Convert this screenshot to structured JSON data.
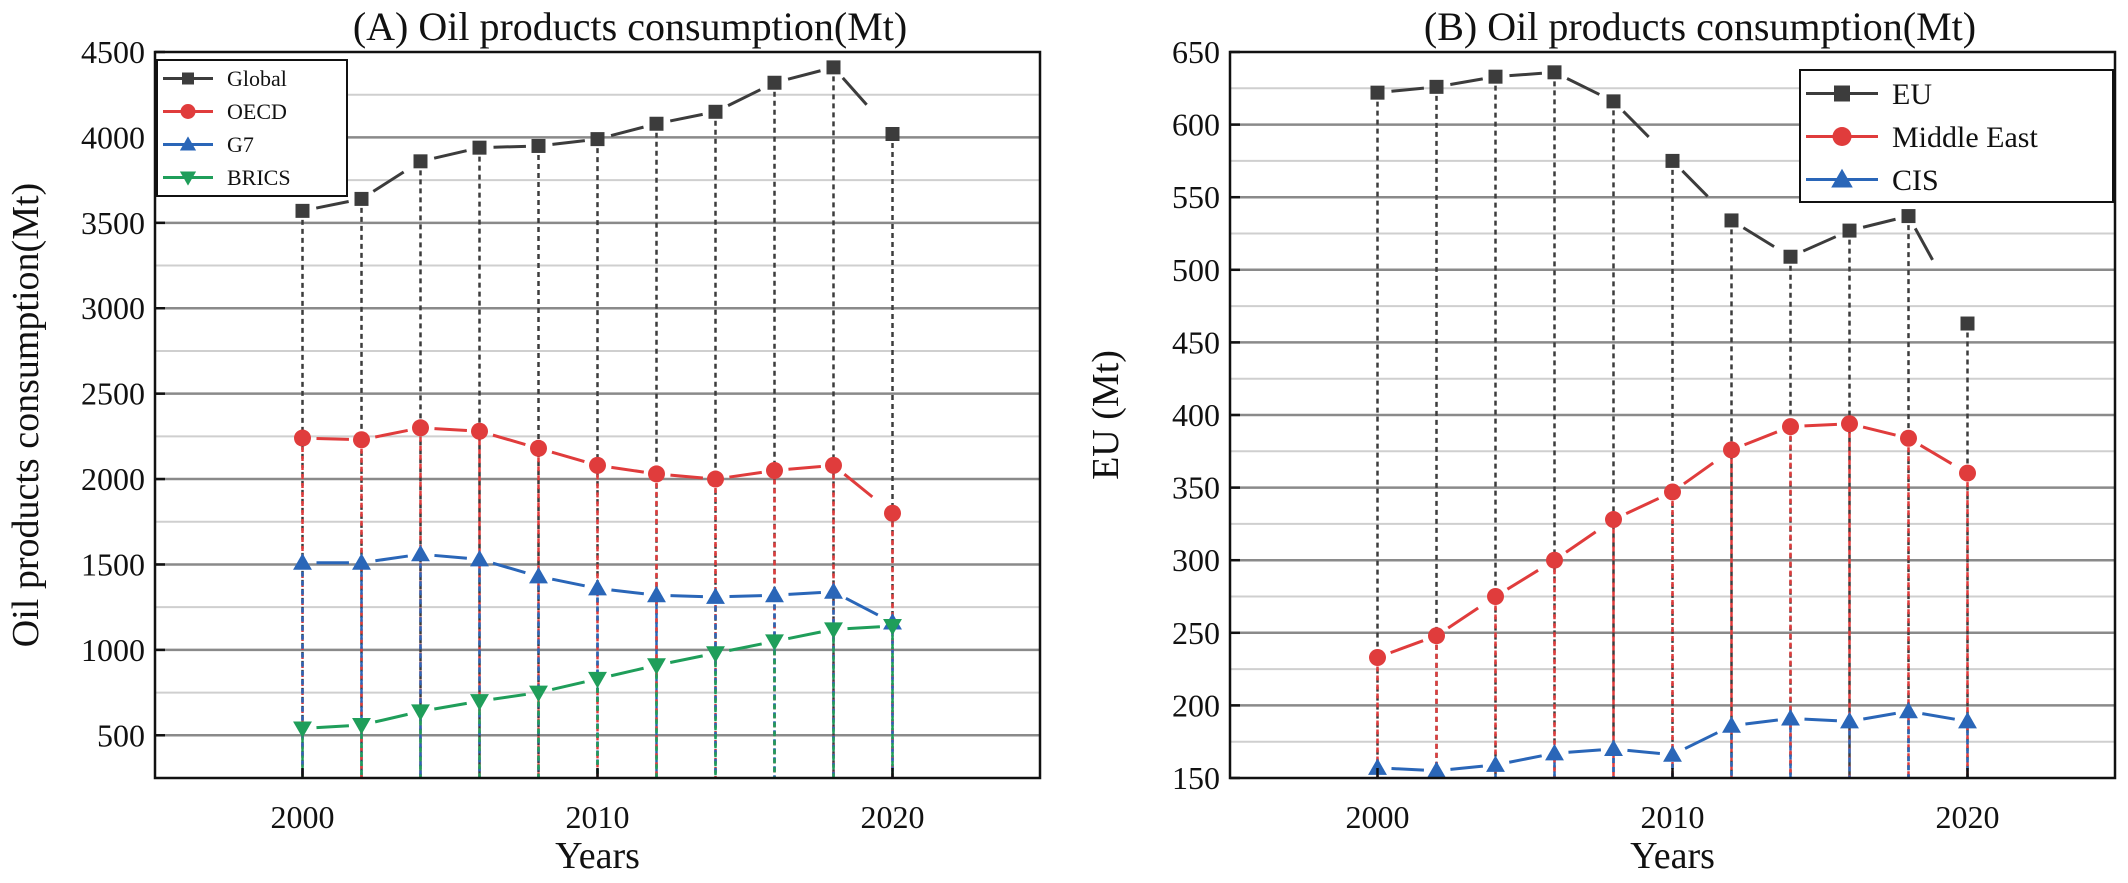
{
  "chart_data": [
    {
      "type": "line",
      "title": "(A)  Oil products consumption(Mt)",
      "xlabel": "Years",
      "ylabel": "Oil products consumption(Mt)",
      "xlim": [
        1995,
        2025
      ],
      "ylim": [
        250,
        4500
      ],
      "xticks": [
        2000,
        2010,
        2020
      ],
      "yticks": [
        500,
        1000,
        1500,
        2000,
        2500,
        3000,
        3500,
        4000,
        4500
      ],
      "tick_labels_x": [
        "2000",
        "2010",
        "2020"
      ],
      "tick_labels_y": [
        "500",
        "1000",
        "1500",
        "2000",
        "2500",
        "3000",
        "3500",
        "4000",
        "4500"
      ],
      "grid": true,
      "legend_position": "top-left",
      "x": [
        2000,
        2002,
        2004,
        2006,
        2008,
        2010,
        2012,
        2014,
        2016,
        2018,
        2020
      ],
      "series": [
        {
          "name": "Global",
          "color": "#3c3c3c",
          "marker": "square",
          "values": [
            3570,
            3640,
            3860,
            3940,
            3950,
            3990,
            4080,
            4150,
            4320,
            4410,
            4020
          ]
        },
        {
          "name": "OECD",
          "color": "#e03c3c",
          "marker": "circle",
          "values": [
            2240,
            2230,
            2300,
            2280,
            2180,
            2080,
            2030,
            2000,
            2050,
            2080,
            1800
          ]
        },
        {
          "name": "G7",
          "color": "#2a66b8",
          "marker": "triangle-up",
          "values": [
            1510,
            1510,
            1560,
            1530,
            1430,
            1360,
            1320,
            1310,
            1320,
            1340,
            1160
          ]
        },
        {
          "name": "BRICS",
          "color": "#1f9e5a",
          "marker": "triangle-down",
          "values": [
            540,
            560,
            640,
            700,
            750,
            830,
            910,
            980,
            1050,
            1120,
            1140
          ]
        }
      ]
    },
    {
      "type": "line",
      "title": "(B)  Oil products consumption(Mt)",
      "xlabel": "Years",
      "ylabel": "EU (Mt)",
      "xlim": [
        1995,
        2025
      ],
      "ylim": [
        150,
        650
      ],
      "xticks": [
        2000,
        2010,
        2020
      ],
      "yticks": [
        150,
        200,
        250,
        300,
        350,
        400,
        450,
        500,
        550,
        600,
        650
      ],
      "tick_labels_x": [
        "2000",
        "2010",
        "2020"
      ],
      "tick_labels_y": [
        "150",
        "200",
        "250",
        "300",
        "350",
        "400",
        "450",
        "500",
        "550",
        "600",
        "650"
      ],
      "grid": true,
      "legend_position": "top-right",
      "x": [
        2000,
        2002,
        2004,
        2006,
        2008,
        2010,
        2012,
        2014,
        2016,
        2018,
        2020
      ],
      "series": [
        {
          "name": "EU",
          "color": "#3c3c3c",
          "marker": "square",
          "values": [
            622,
            626,
            633,
            636,
            616,
            575,
            534,
            509,
            527,
            537,
            463
          ]
        },
        {
          "name": "Middle East",
          "color": "#e03c3c",
          "marker": "circle",
          "values": [
            233,
            248,
            275,
            300,
            328,
            347,
            376,
            392,
            394,
            384,
            360
          ]
        },
        {
          "name": "CIS",
          "color": "#2a66b8",
          "marker": "triangle-up",
          "values": [
            157,
            155,
            159,
            167,
            170,
            166,
            186,
            191,
            189,
            196,
            189
          ]
        }
      ]
    }
  ]
}
